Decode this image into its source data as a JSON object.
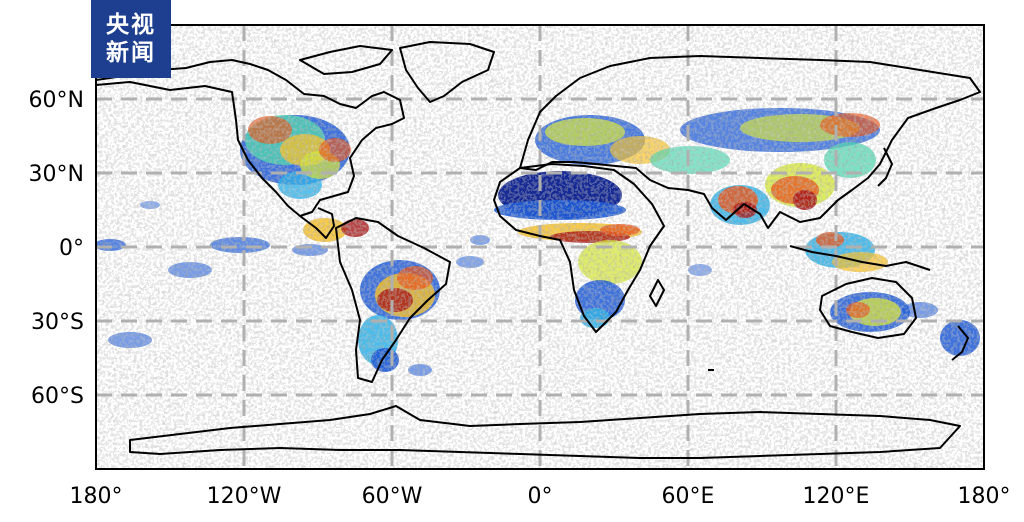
{
  "logo": {
    "line1": "央视",
    "line2": "新闻"
  },
  "map": {
    "projection": "equirectangular",
    "lon_range": [
      -180,
      180
    ],
    "lat_range": [
      -90,
      90
    ],
    "grid": true,
    "x_ticks": [
      {
        "lon": -180,
        "label": "180°"
      },
      {
        "lon": -120,
        "label": "120°W"
      },
      {
        "lon": -60,
        "label": "60°W"
      },
      {
        "lon": 0,
        "label": "0°"
      },
      {
        "lon": 60,
        "label": "60°E"
      },
      {
        "lon": 120,
        "label": "120°E"
      },
      {
        "lon": 180,
        "label": "180°"
      }
    ],
    "y_ticks": [
      {
        "lat": 60,
        "label": "60°N"
      },
      {
        "lat": 30,
        "label": "30°N"
      },
      {
        "lat": 0,
        "label": "0°"
      },
      {
        "lat": -30,
        "label": "30°S"
      },
      {
        "lat": -60,
        "label": "60°S"
      }
    ],
    "colormap": [
      "#0a1f8f",
      "#1e5bd6",
      "#2fb0e8",
      "#4fd6b0",
      "#d4e63a",
      "#f5c02a",
      "#e8581e",
      "#a81818"
    ]
  }
}
